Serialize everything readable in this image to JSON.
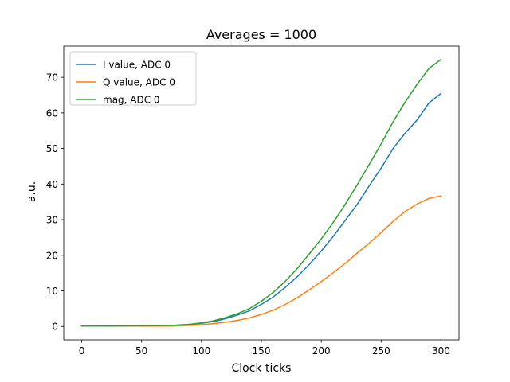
{
  "chart_data": {
    "type": "line",
    "title": "Averages = 1000",
    "xlabel": "Clock ticks",
    "ylabel": "a.u.",
    "xlim": [
      -15,
      315
    ],
    "ylim": [
      -3.75,
      78.75
    ],
    "xticks": [
      0,
      50,
      100,
      150,
      200,
      250,
      300
    ],
    "yticks": [
      0,
      10,
      20,
      30,
      40,
      50,
      60,
      70
    ],
    "grid": false,
    "legend_position": "upper-left",
    "x": [
      0,
      25,
      50,
      75,
      90,
      100,
      110,
      120,
      130,
      140,
      150,
      160,
      170,
      180,
      190,
      200,
      210,
      220,
      230,
      240,
      250,
      260,
      270,
      280,
      290,
      300
    ],
    "series": [
      {
        "name": "I value, ADC 0",
        "color": "#1f77b4",
        "values": [
          0.1,
          0.1,
          0.1,
          0.2,
          0.5,
          0.9,
          1.4,
          2.2,
          3.2,
          4.4,
          6.2,
          8.3,
          11.0,
          14.0,
          17.4,
          21.2,
          25.3,
          29.8,
          34.3,
          39.5,
          44.5,
          50.0,
          54.3,
          58.0,
          62.8,
          65.5
        ]
      },
      {
        "name": "Q value, ADC 0",
        "color": "#ff7f0e",
        "values": [
          0.1,
          0.1,
          0.1,
          0.1,
          0.3,
          0.5,
          0.8,
          1.2,
          1.7,
          2.4,
          3.4,
          4.6,
          6.2,
          8.1,
          10.3,
          12.6,
          15.1,
          17.7,
          20.6,
          23.4,
          26.4,
          29.5,
          32.3,
          34.4,
          36.0,
          36.7
        ]
      },
      {
        "name": "mag, ADC 0",
        "color": "#2ca02c",
        "values": [
          0.1,
          0.1,
          0.2,
          0.3,
          0.6,
          1.0,
          1.6,
          2.5,
          3.6,
          5.0,
          7.1,
          9.6,
          12.7,
          16.3,
          20.4,
          24.6,
          29.2,
          34.3,
          39.8,
          45.5,
          51.3,
          57.5,
          63.0,
          68.0,
          72.5,
          75.0
        ]
      }
    ]
  }
}
